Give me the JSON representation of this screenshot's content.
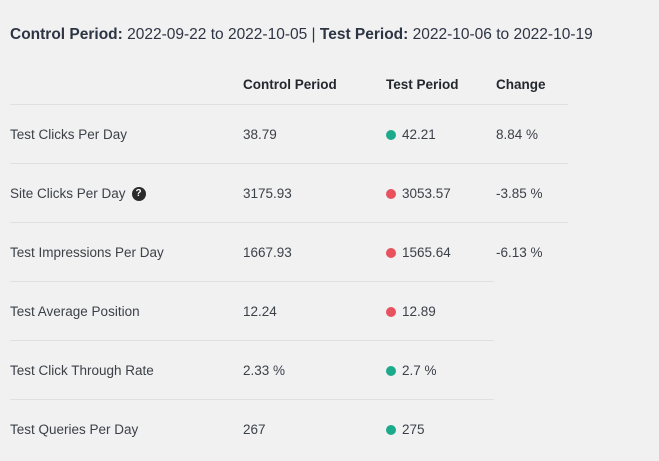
{
  "title": {
    "control_label": "Control Period:",
    "control_range": " 2022-09-22 to 2022-10-05 ",
    "separator": "|",
    "test_label": " Test Period:",
    "test_range": " 2022-10-06 to 2022-10-19"
  },
  "icons": {
    "help_glyph": "?"
  },
  "colors": {
    "background": "#f1f1f2",
    "positive_dot": "#1daa8b",
    "negative_dot": "#e8525f",
    "separator": "#e0e0e2"
  },
  "table": {
    "header": {
      "metric": "",
      "control": "Control Period",
      "test": "Test Period",
      "change": "Change"
    },
    "rows": [
      {
        "metric": "Test Clicks Per Day",
        "control": "38.79",
        "test": "42.21",
        "trend": "up",
        "change": "8.84 %"
      },
      {
        "metric": "Site Clicks Per Day",
        "control": "3175.93",
        "test": "3053.57",
        "trend": "down",
        "change": "-3.85 %"
      },
      {
        "metric": "Test Impressions Per Day",
        "control": "1667.93",
        "test": "1565.64",
        "trend": "down",
        "change": "-6.13 %"
      },
      {
        "metric": "Test Average Position",
        "control": "12.24",
        "test": "12.89",
        "trend": "down",
        "change": ""
      },
      {
        "metric": "Test Click Through Rate",
        "control": "2.33 %",
        "test": "2.7 %",
        "trend": "up",
        "change": ""
      },
      {
        "metric": "Test Queries Per Day",
        "control": "267",
        "test": "275",
        "trend": "up",
        "change": ""
      }
    ]
  }
}
